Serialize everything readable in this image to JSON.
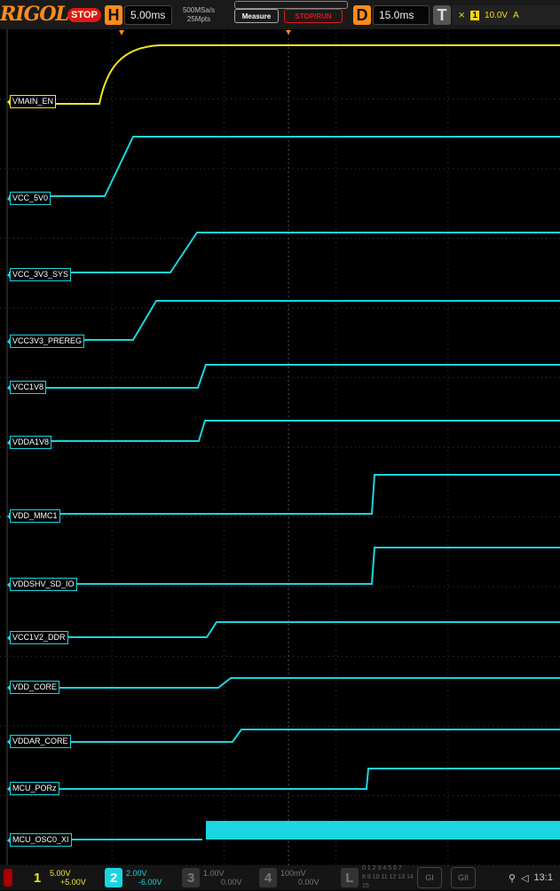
{
  "colors": {
    "ch1": "#f3e621",
    "ch2": "#19d6e0",
    "accent": "#ff8c1a",
    "stop": "#e01818",
    "grid": "#3a3a3a"
  },
  "top": {
    "logo": "RIGOL",
    "run_state": "STOP",
    "timebase_key": "H",
    "timebase": "5.00ms",
    "sample_rate": "500MSa/s",
    "memory_depth": "25Mpts",
    "measure": "Measure",
    "stoprun": "STOP/RUN",
    "delay_key": "D",
    "delay": "15.0ms",
    "trigger_key": "T",
    "trigger_source": "1",
    "trigger_level": "10.0V",
    "trigger_mode": "A"
  },
  "channels": [
    {
      "name": "VMAIN_EN",
      "color": "ch1"
    },
    {
      "name": "VCC_5V0",
      "color": "ch2"
    },
    {
      "name": "VCC_3V3_SYS",
      "color": "ch2"
    },
    {
      "name": "VCC3V3_PREREG",
      "color": "ch2"
    },
    {
      "name": "VCC1V8",
      "color": "ch2"
    },
    {
      "name": "VDDA1V8",
      "color": "ch2"
    },
    {
      "name": "VDD_MMC1",
      "color": "ch2"
    },
    {
      "name": "VDDSHV_SD_IO",
      "color": "ch2"
    },
    {
      "name": "VCC1V2_DDR",
      "color": "ch2"
    },
    {
      "name": "VDD_CORE",
      "color": "ch2"
    },
    {
      "name": "VDDAR_CORE",
      "color": "ch2"
    },
    {
      "name": "MCU_PORz",
      "color": "ch2"
    },
    {
      "name": "MCU_OSC0_XI",
      "color": "ch2"
    }
  ],
  "bottom": {
    "ch1": {
      "num": "1",
      "scale": "5.00V",
      "offset": "+5.00V"
    },
    "ch2": {
      "num": "2",
      "scale": "2.00V",
      "offset": "-6.00V"
    },
    "ch3": {
      "num": "3",
      "scale": "1.00V",
      "offset": "0.00V"
    },
    "ch4": {
      "num": "4",
      "scale": "100mV",
      "offset": "0.00V"
    },
    "logic": "L",
    "logic_bits_1": "0 1 2 3 4 5 6 7",
    "logic_bits_2": "8 9 10 11 12 13 14 15",
    "g1": "GI",
    "g2": "GII",
    "clock": "13:1"
  }
}
